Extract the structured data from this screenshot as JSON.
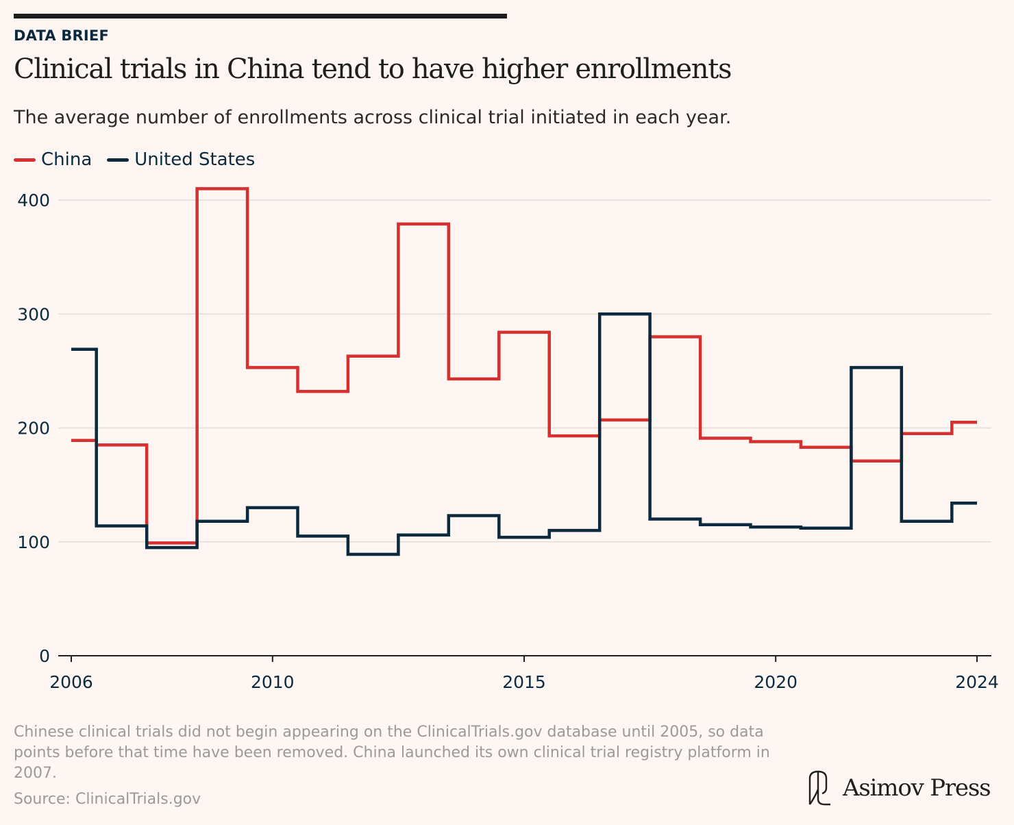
{
  "header": {
    "kicker": "DATA BRIEF",
    "title": "Clinical trials in China tend to have higher enrollments",
    "subtitle": "The average number of enrollments across clinical trial initiated in each year."
  },
  "legend": [
    {
      "label": "China",
      "color": "#d63031"
    },
    {
      "label": "United States",
      "color": "#0b2a3d"
    }
  ],
  "chart_data": {
    "type": "line",
    "step": true,
    "x": [
      2006,
      2007,
      2008,
      2009,
      2010,
      2011,
      2012,
      2013,
      2014,
      2015,
      2016,
      2017,
      2018,
      2019,
      2020,
      2021,
      2022,
      2023,
      2024
    ],
    "series": [
      {
        "name": "China",
        "color": "#d63031",
        "values": [
          189,
          185,
          99,
          410,
          253,
          232,
          263,
          379,
          243,
          284,
          193,
          207,
          280,
          191,
          188,
          183,
          171,
          195,
          205
        ]
      },
      {
        "name": "United States",
        "color": "#0b2a3d",
        "values": [
          269,
          114,
          95,
          118,
          130,
          105,
          89,
          106,
          123,
          104,
          110,
          300,
          120,
          115,
          113,
          112,
          253,
          118,
          134
        ]
      }
    ],
    "yticks": [
      0,
      100,
      200,
      300,
      400
    ],
    "xticks": [
      2006,
      2010,
      2015,
      2020,
      2024
    ],
    "ylim": [
      0,
      400
    ],
    "xlim": [
      2006,
      2024
    ],
    "grid": true
  },
  "footer": {
    "note": "Chinese clinical trials did not begin appearing on the ClinicalTrials.gov database until 2005, so data points before that time have been removed. China launched its own clinical trial registry platform in 2007.",
    "source": "Source: ClinicalTrials.gov",
    "brand": "Asimov Press"
  }
}
